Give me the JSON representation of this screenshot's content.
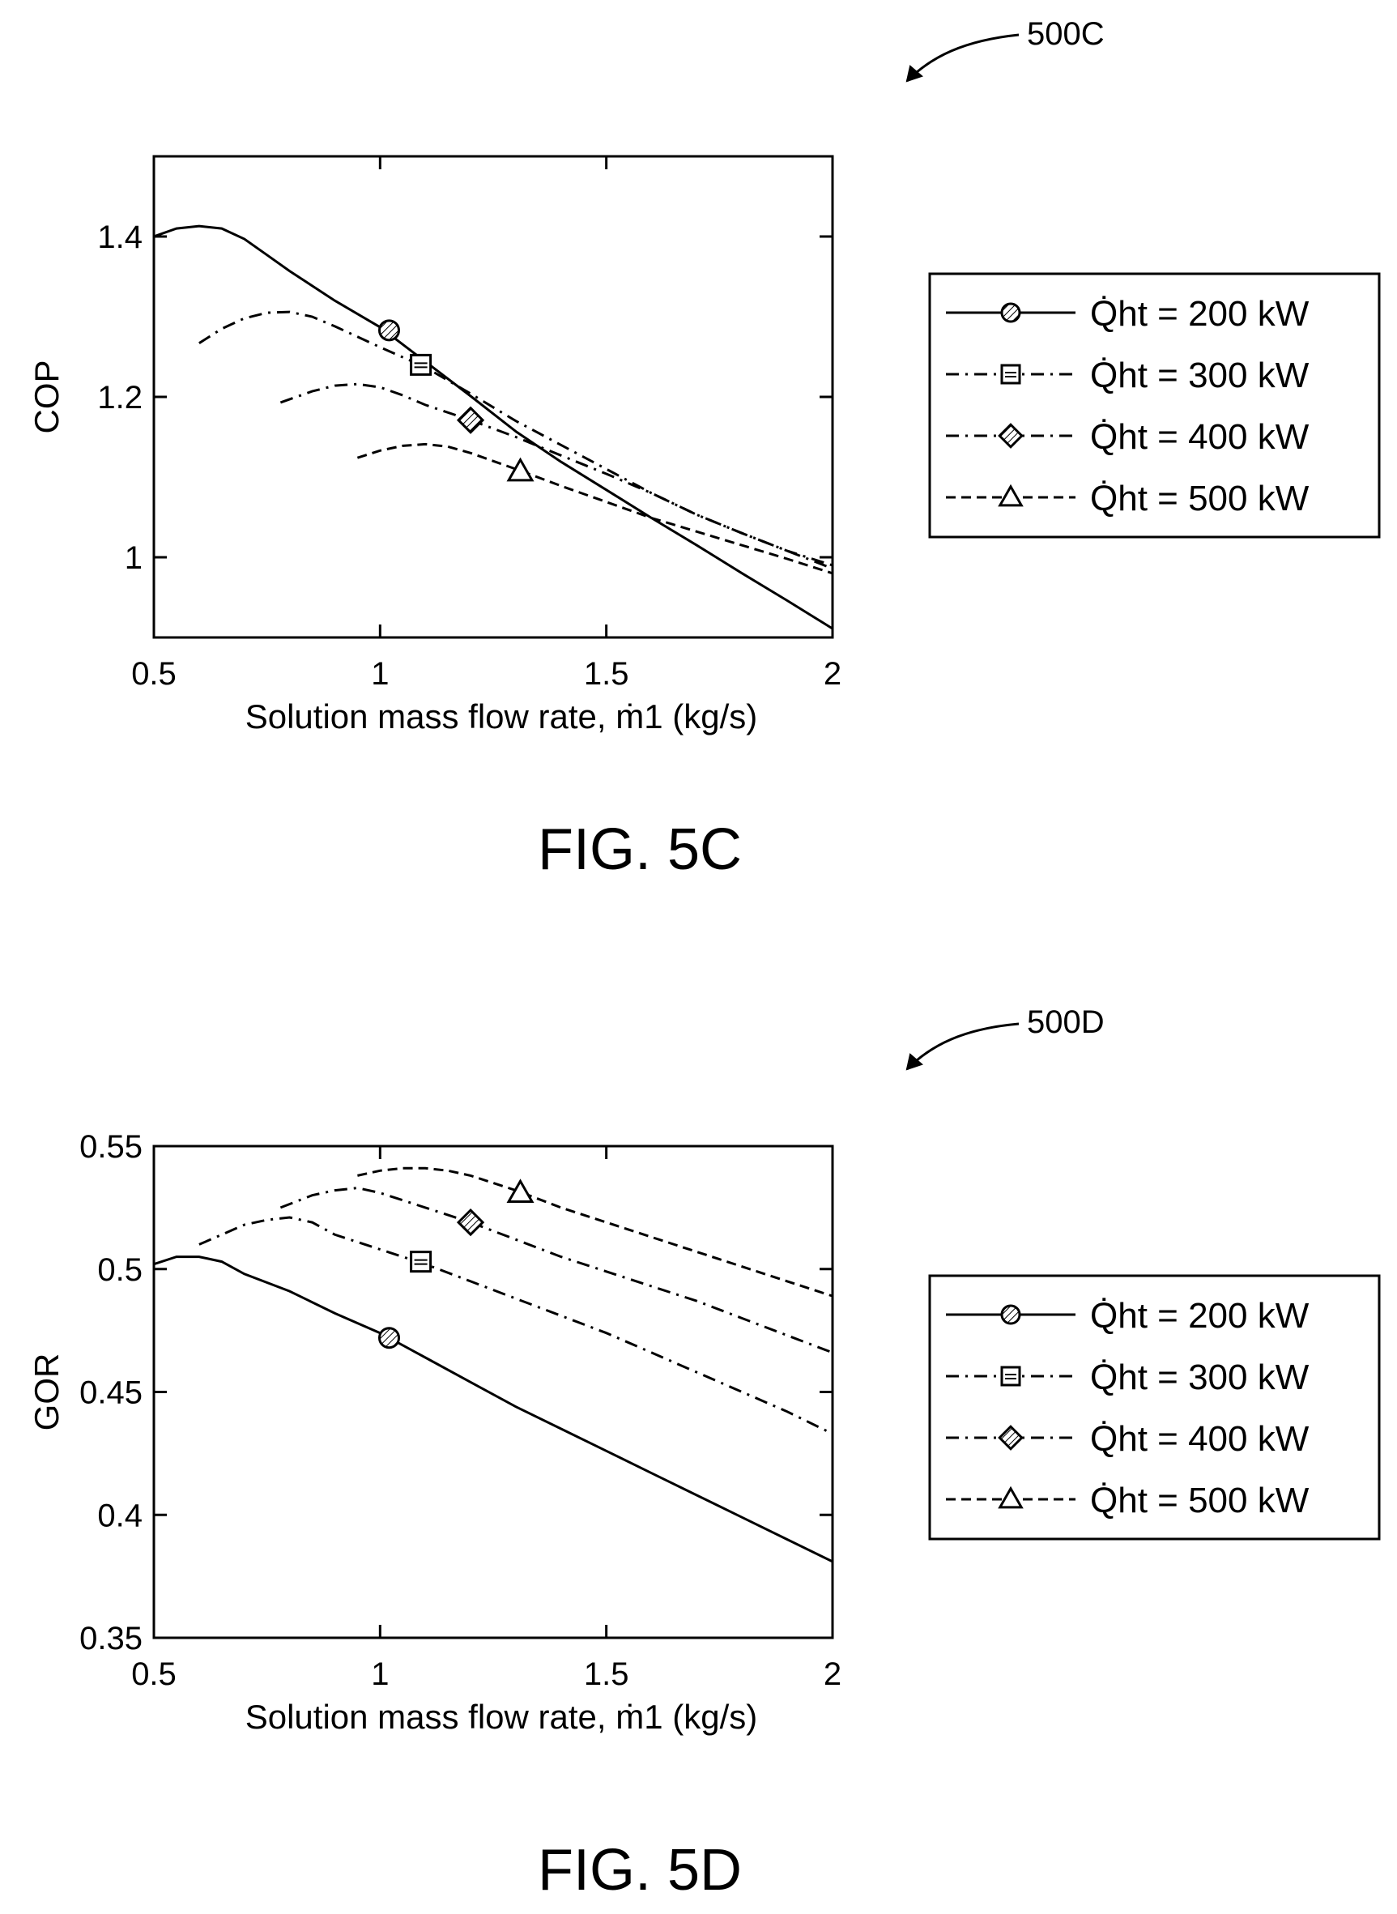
{
  "chart_data": [
    {
      "type": "line",
      "figure_label": "FIG. 5C",
      "reference_label": "500C",
      "xlabel": "Solution mass flow rate, ṁ1 (kg/s)",
      "ylabel": "COP",
      "xlim": [
        0.5,
        2.0
      ],
      "ylim": [
        0.9,
        1.5
      ],
      "xticks": [
        "0.5",
        "1",
        "1.5",
        "2"
      ],
      "yticks": [
        "1",
        "1.2",
        "1.4"
      ],
      "grid": false,
      "legend_position": "right",
      "series": [
        {
          "name": "Q̇ht = 200 kW",
          "line_style": "solid",
          "marker": "circle",
          "marker_x": 1.02,
          "marker_y": 1.283,
          "points": [
            [
              0.5,
              1.4
            ],
            [
              0.55,
              1.41
            ],
            [
              0.6,
              1.413
            ],
            [
              0.65,
              1.41
            ],
            [
              0.7,
              1.397
            ],
            [
              0.75,
              1.377
            ],
            [
              0.8,
              1.357
            ],
            [
              0.9,
              1.32
            ],
            [
              1.0,
              1.287
            ],
            [
              1.1,
              1.244
            ],
            [
              1.2,
              1.201
            ],
            [
              1.3,
              1.157
            ],
            [
              1.4,
              1.119
            ],
            [
              1.5,
              1.084
            ],
            [
              1.6,
              1.049
            ],
            [
              1.7,
              1.015
            ],
            [
              1.8,
              0.98
            ],
            [
              1.9,
              0.946
            ],
            [
              2.0,
              0.911
            ]
          ]
        },
        {
          "name": "Q̇ht = 300 kW",
          "line_style": "dash-dot",
          "marker": "square",
          "marker_x": 1.09,
          "marker_y": 1.24,
          "points": [
            [
              0.6,
              1.267
            ],
            [
              0.65,
              1.285
            ],
            [
              0.7,
              1.298
            ],
            [
              0.75,
              1.305
            ],
            [
              0.8,
              1.306
            ],
            [
              0.85,
              1.3
            ],
            [
              0.9,
              1.288
            ],
            [
              1.0,
              1.262
            ],
            [
              1.1,
              1.237
            ],
            [
              1.2,
              1.204
            ],
            [
              1.3,
              1.17
            ],
            [
              1.4,
              1.14
            ],
            [
              1.5,
              1.11
            ],
            [
              1.6,
              1.08
            ],
            [
              1.7,
              1.053
            ],
            [
              1.8,
              1.03
            ],
            [
              1.9,
              1.008
            ],
            [
              2.0,
              0.986
            ]
          ]
        },
        {
          "name": "Q̇ht = 400 kW",
          "line_style": "dash-dot",
          "marker": "diamond",
          "marker_x": 1.2,
          "marker_y": 1.171,
          "points": [
            [
              0.78,
              1.193
            ],
            [
              0.85,
              1.207
            ],
            [
              0.9,
              1.214
            ],
            [
              0.95,
              1.216
            ],
            [
              1.0,
              1.212
            ],
            [
              1.05,
              1.202
            ],
            [
              1.1,
              1.19
            ],
            [
              1.2,
              1.171
            ],
            [
              1.3,
              1.15
            ],
            [
              1.4,
              1.127
            ],
            [
              1.5,
              1.104
            ],
            [
              1.6,
              1.08
            ],
            [
              1.7,
              1.053
            ],
            [
              1.8,
              1.03
            ],
            [
              1.9,
              1.008
            ],
            [
              2.0,
              0.99
            ]
          ]
        },
        {
          "name": "Q̇ht = 500 kW",
          "line_style": "dashed",
          "marker": "triangle",
          "marker_x": 1.31,
          "marker_y": 1.107,
          "points": [
            [
              0.95,
              1.124
            ],
            [
              1.0,
              1.133
            ],
            [
              1.05,
              1.139
            ],
            [
              1.1,
              1.141
            ],
            [
              1.15,
              1.138
            ],
            [
              1.2,
              1.13
            ],
            [
              1.3,
              1.11
            ],
            [
              1.4,
              1.089
            ],
            [
              1.5,
              1.069
            ],
            [
              1.6,
              1.049
            ],
            [
              1.7,
              1.032
            ],
            [
              1.8,
              1.015
            ],
            [
              1.9,
              0.998
            ],
            [
              2.0,
              0.98
            ]
          ]
        }
      ]
    },
    {
      "type": "line",
      "figure_label": "FIG. 5D",
      "reference_label": "500D",
      "xlabel": "Solution mass flow rate, ṁ1 (kg/s)",
      "ylabel": "GOR",
      "xlim": [
        0.5,
        2.0
      ],
      "ylim": [
        0.35,
        0.55
      ],
      "xticks": [
        "0.5",
        "1",
        "1.5",
        "2"
      ],
      "yticks": [
        "0.35",
        "0.4",
        "0.45",
        "0.5",
        "0.55"
      ],
      "grid": false,
      "legend_position": "right",
      "series": [
        {
          "name": "Q̇ht = 200 kW",
          "line_style": "solid",
          "marker": "circle",
          "marker_x": 1.02,
          "marker_y": 0.472,
          "points": [
            [
              0.5,
              0.502
            ],
            [
              0.55,
              0.505
            ],
            [
              0.6,
              0.505
            ],
            [
              0.65,
              0.503
            ],
            [
              0.7,
              0.498
            ],
            [
              0.8,
              0.491
            ],
            [
              0.9,
              0.482
            ],
            [
              1.0,
              0.474
            ],
            [
              1.1,
              0.464
            ],
            [
              1.2,
              0.454
            ],
            [
              1.3,
              0.444
            ],
            [
              1.4,
              0.435
            ],
            [
              1.5,
              0.426
            ],
            [
              1.6,
              0.417
            ],
            [
              1.7,
              0.408
            ],
            [
              1.8,
              0.399
            ],
            [
              1.9,
              0.39
            ],
            [
              2.0,
              0.381
            ]
          ]
        },
        {
          "name": "Q̇ht = 300 kW",
          "line_style": "dash-dot",
          "marker": "square",
          "marker_x": 1.09,
          "marker_y": 0.503,
          "points": [
            [
              0.6,
              0.51
            ],
            [
              0.65,
              0.514
            ],
            [
              0.7,
              0.518
            ],
            [
              0.75,
              0.52
            ],
            [
              0.8,
              0.521
            ],
            [
              0.85,
              0.519
            ],
            [
              0.9,
              0.514
            ],
            [
              1.0,
              0.508
            ],
            [
              1.1,
              0.502
            ],
            [
              1.2,
              0.495
            ],
            [
              1.3,
              0.488
            ],
            [
              1.4,
              0.481
            ],
            [
              1.5,
              0.474
            ],
            [
              1.6,
              0.466
            ],
            [
              1.7,
              0.458
            ],
            [
              1.8,
              0.45
            ],
            [
              1.9,
              0.442
            ],
            [
              2.0,
              0.433
            ]
          ]
        },
        {
          "name": "Q̇ht = 400 kW",
          "line_style": "dash-dot",
          "marker": "diamond",
          "marker_x": 1.2,
          "marker_y": 0.519,
          "points": [
            [
              0.78,
              0.525
            ],
            [
              0.85,
              0.53
            ],
            [
              0.9,
              0.532
            ],
            [
              0.95,
              0.533
            ],
            [
              1.0,
              0.531
            ],
            [
              1.1,
              0.525
            ],
            [
              1.2,
              0.519
            ],
            [
              1.3,
              0.512
            ],
            [
              1.4,
              0.505
            ],
            [
              1.5,
              0.499
            ],
            [
              1.6,
              0.493
            ],
            [
              1.7,
              0.487
            ],
            [
              1.8,
              0.48
            ],
            [
              1.9,
              0.473
            ],
            [
              2.0,
              0.466
            ]
          ]
        },
        {
          "name": "Q̇ht = 500 kW",
          "line_style": "dashed",
          "marker": "triangle",
          "marker_x": 1.31,
          "marker_y": 0.531,
          "points": [
            [
              0.95,
              0.538
            ],
            [
              1.0,
              0.54
            ],
            [
              1.05,
              0.541
            ],
            [
              1.1,
              0.541
            ],
            [
              1.15,
              0.54
            ],
            [
              1.2,
              0.538
            ],
            [
              1.3,
              0.532
            ],
            [
              1.4,
              0.525
            ],
            [
              1.5,
              0.519
            ],
            [
              1.6,
              0.513
            ],
            [
              1.7,
              0.507
            ],
            [
              1.8,
              0.501
            ],
            [
              1.9,
              0.495
            ],
            [
              2.0,
              0.489
            ]
          ]
        }
      ]
    }
  ]
}
